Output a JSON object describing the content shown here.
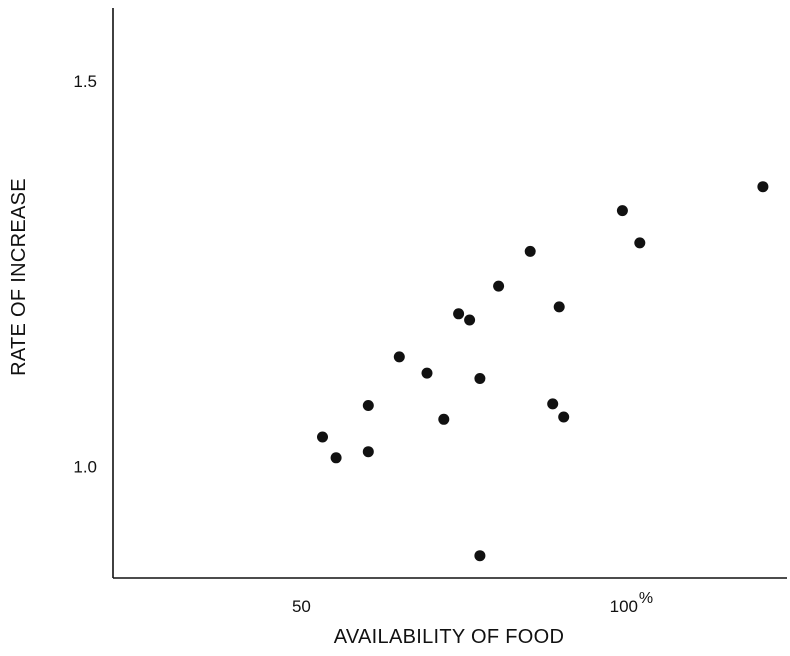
{
  "chart_data": {
    "type": "scatter",
    "title": "",
    "xlabel": "AVAILABILITY OF FOOD",
    "ylabel": "RATE OF INCREASE",
    "x_unit_label": "%",
    "xlim": [
      20,
      125
    ],
    "ylim": [
      0.855,
      1.595
    ],
    "x_ticks": [
      {
        "value": 50,
        "label": "50"
      },
      {
        "value": 100,
        "label": "100"
      }
    ],
    "y_ticks": [
      {
        "value": 1.0,
        "label": "1.0"
      },
      {
        "value": 1.5,
        "label": "1.5"
      }
    ],
    "grid": false,
    "legend": "none",
    "marker_color": "#111111",
    "points": [
      {
        "x": 52.5,
        "y": 1.038
      },
      {
        "x": 54.6,
        "y": 1.011
      },
      {
        "x": 59.6,
        "y": 1.079
      },
      {
        "x": 59.6,
        "y": 1.019
      },
      {
        "x": 64.4,
        "y": 1.142
      },
      {
        "x": 68.7,
        "y": 1.121
      },
      {
        "x": 71.3,
        "y": 1.061
      },
      {
        "x": 73.6,
        "y": 1.198
      },
      {
        "x": 75.3,
        "y": 1.19
      },
      {
        "x": 76.9,
        "y": 1.114
      },
      {
        "x": 76.9,
        "y": 0.884
      },
      {
        "x": 79.8,
        "y": 1.234
      },
      {
        "x": 84.7,
        "y": 1.279
      },
      {
        "x": 88.2,
        "y": 1.081
      },
      {
        "x": 89.2,
        "y": 1.207
      },
      {
        "x": 89.9,
        "y": 1.064
      },
      {
        "x": 99.0,
        "y": 1.332
      },
      {
        "x": 101.7,
        "y": 1.29
      },
      {
        "x": 120.8,
        "y": 1.363
      }
    ]
  }
}
